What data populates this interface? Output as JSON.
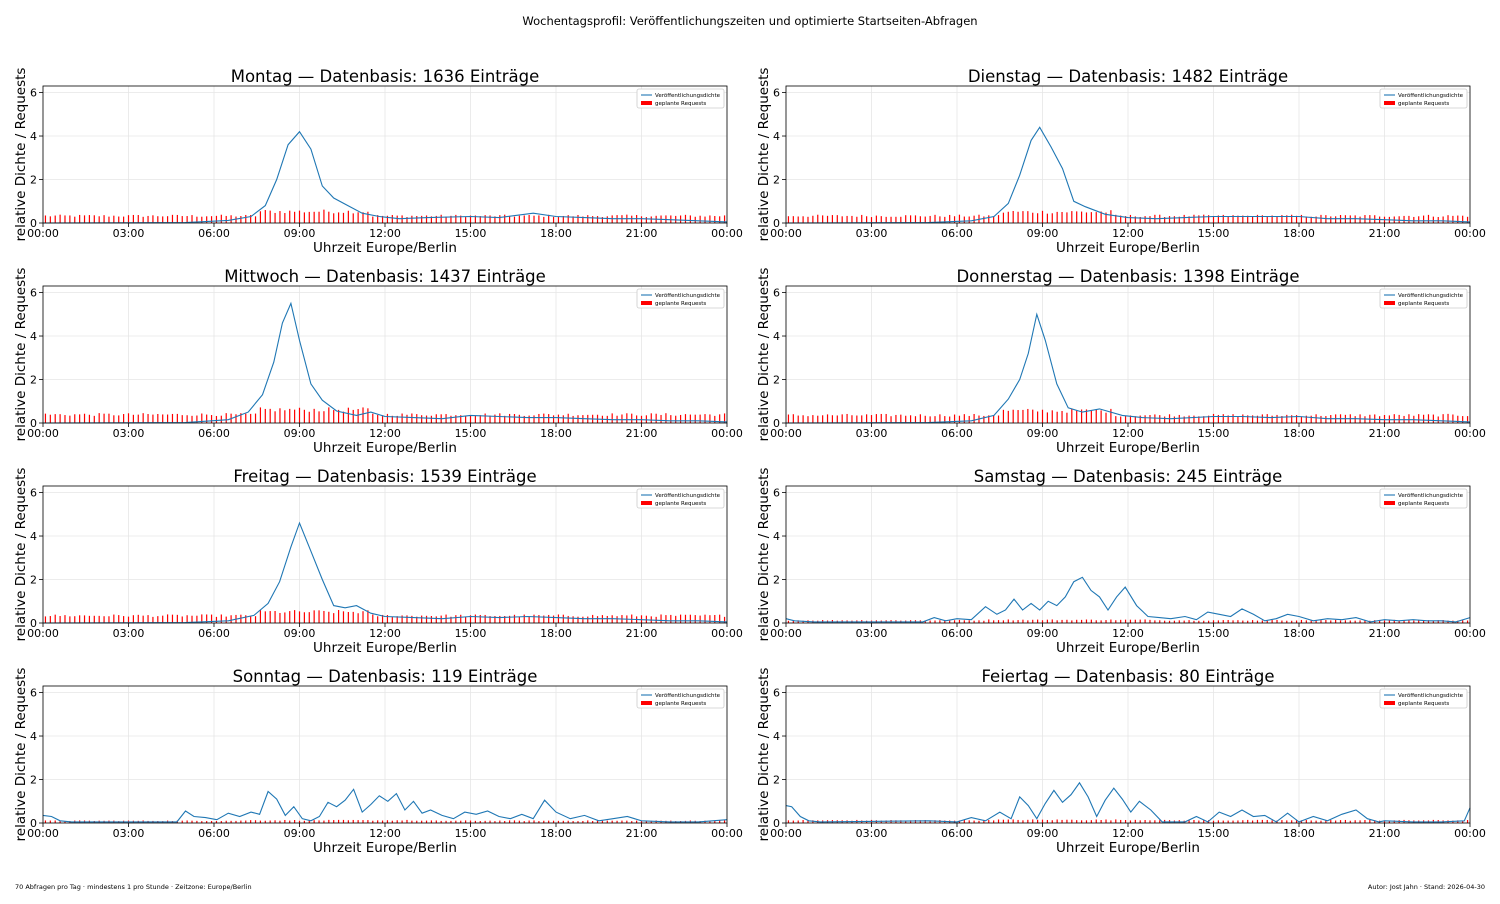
{
  "suptitle": "Wochentagsprofil: Veröffentlichungszeiten und optimierte Startseiten-Abfragen",
  "footer": {
    "left": "70 Abfragen pro Tag · mindestens 1 pro Stunde · Zeitzone: Europe/Berlin",
    "right": "Autor: Jost Jahn · Stand: 2026-04-30"
  },
  "colors": {
    "density": "#1f77b4",
    "requests": "#ff0000",
    "grid": "#e6e6e6"
  },
  "chart_data": [
    {
      "type": "line",
      "title": "Montag — Datenbasis: 1636 Einträge",
      "xlabel": "Uhrzeit Europe/Berlin",
      "ylabel": "relative Dichte / Requests",
      "xticks": [
        "00:00",
        "03:00",
        "06:00",
        "09:00",
        "12:00",
        "15:00",
        "18:00",
        "21:00",
        "00:00"
      ],
      "yticks": [
        "0",
        "2",
        "4",
        "6"
      ],
      "xlim": [
        0,
        24
      ],
      "ylim": [
        0,
        6.3
      ],
      "grid": true,
      "legend": "top-right",
      "series": [
        {
          "name": "Veröffentlichungsdichte",
          "type": "line",
          "x": [
            0,
            5,
            6.5,
            7.3,
            7.8,
            8.2,
            8.6,
            9.0,
            9.4,
            9.8,
            10.2,
            10.7,
            11.2,
            11.8,
            12.5,
            13.5,
            15,
            16,
            17.2,
            18,
            19,
            20,
            21,
            22,
            23,
            24
          ],
          "y": [
            0,
            0.02,
            0.12,
            0.3,
            0.8,
            2.0,
            3.6,
            4.2,
            3.4,
            1.7,
            1.15,
            0.8,
            0.45,
            0.3,
            0.2,
            0.25,
            0.3,
            0.25,
            0.45,
            0.3,
            0.25,
            0.2,
            0.2,
            0.15,
            0.1,
            0.05
          ]
        },
        {
          "name": "geplante Requests",
          "type": "bar",
          "value_off": 0.32,
          "value_peak": 0.52,
          "peak_range": [
            7.5,
            11.5
          ]
        }
      ]
    },
    {
      "type": "line",
      "title": "Dienstag — Datenbasis: 1482 Einträge",
      "xlabel": "Uhrzeit Europe/Berlin",
      "ylabel": "relative Dichte / Requests",
      "xticks": [
        "00:00",
        "03:00",
        "06:00",
        "09:00",
        "12:00",
        "15:00",
        "18:00",
        "21:00",
        "00:00"
      ],
      "yticks": [
        "0",
        "2",
        "4",
        "6"
      ],
      "xlim": [
        0,
        24
      ],
      "ylim": [
        0,
        6.3
      ],
      "grid": true,
      "legend": "top-right",
      "series": [
        {
          "name": "Veröffentlichungsdichte",
          "type": "line",
          "x": [
            0,
            5,
            6.5,
            7.3,
            7.8,
            8.2,
            8.6,
            8.9,
            9.3,
            9.7,
            10.1,
            10.5,
            11.2,
            12,
            13,
            14,
            15,
            16,
            17,
            18,
            19,
            20,
            21,
            22,
            23,
            24
          ],
          "y": [
            0,
            0.02,
            0.1,
            0.3,
            0.9,
            2.2,
            3.8,
            4.4,
            3.5,
            2.5,
            1.0,
            0.75,
            0.4,
            0.25,
            0.2,
            0.25,
            0.3,
            0.3,
            0.3,
            0.3,
            0.2,
            0.2,
            0.15,
            0.1,
            0.1,
            0.05
          ]
        },
        {
          "name": "geplante Requests",
          "type": "bar",
          "value_off": 0.32,
          "value_peak": 0.5,
          "peak_range": [
            7.5,
            11.5
          ]
        }
      ]
    },
    {
      "type": "line",
      "title": "Mittwoch — Datenbasis: 1437 Einträge",
      "xlabel": "Uhrzeit Europe/Berlin",
      "ylabel": "relative Dichte / Requests",
      "xticks": [
        "00:00",
        "03:00",
        "06:00",
        "09:00",
        "12:00",
        "15:00",
        "18:00",
        "21:00",
        "00:00"
      ],
      "yticks": [
        "0",
        "2",
        "4",
        "6"
      ],
      "xlim": [
        0,
        24
      ],
      "ylim": [
        0,
        6.3
      ],
      "grid": true,
      "legend": "top-right",
      "series": [
        {
          "name": "Veröffentlichungsdichte",
          "type": "line",
          "x": [
            0,
            5,
            6.5,
            7.2,
            7.7,
            8.1,
            8.4,
            8.7,
            9.0,
            9.4,
            9.8,
            10.3,
            11,
            11.5,
            12,
            13,
            14,
            15,
            16,
            17,
            18,
            19,
            20,
            21,
            22,
            23,
            24
          ],
          "y": [
            0,
            0.02,
            0.15,
            0.5,
            1.3,
            2.8,
            4.6,
            5.5,
            3.8,
            1.8,
            1.05,
            0.55,
            0.35,
            0.5,
            0.3,
            0.25,
            0.2,
            0.35,
            0.3,
            0.25,
            0.25,
            0.2,
            0.15,
            0.15,
            0.1,
            0.1,
            0.05
          ]
        },
        {
          "name": "geplante Requests",
          "type": "bar",
          "value_off": 0.38,
          "value_peak": 0.6,
          "peak_range": [
            7.5,
            11.5
          ]
        }
      ]
    },
    {
      "type": "line",
      "title": "Donnerstag — Datenbasis: 1398 Einträge",
      "xlabel": "Uhrzeit Europe/Berlin",
      "ylabel": "relative Dichte / Requests",
      "xticks": [
        "00:00",
        "03:00",
        "06:00",
        "09:00",
        "12:00",
        "15:00",
        "18:00",
        "21:00",
        "00:00"
      ],
      "yticks": [
        "0",
        "2",
        "4",
        "6"
      ],
      "xlim": [
        0,
        24
      ],
      "ylim": [
        0,
        6.3
      ],
      "grid": true,
      "legend": "top-right",
      "series": [
        {
          "name": "Veröffentlichungsdichte",
          "type": "line",
          "x": [
            0,
            5,
            6.5,
            7.3,
            7.8,
            8.2,
            8.5,
            8.8,
            9.1,
            9.5,
            9.9,
            10.4,
            11,
            11.8,
            12.5,
            13.5,
            15,
            16,
            17,
            18,
            19,
            20,
            21,
            22,
            23,
            24
          ],
          "y": [
            0,
            0.02,
            0.1,
            0.35,
            1.1,
            2.0,
            3.2,
            5.0,
            3.8,
            1.8,
            0.7,
            0.5,
            0.65,
            0.35,
            0.25,
            0.2,
            0.3,
            0.3,
            0.25,
            0.3,
            0.2,
            0.2,
            0.15,
            0.15,
            0.1,
            0.05
          ]
        },
        {
          "name": "geplante Requests",
          "type": "bar",
          "value_off": 0.35,
          "value_peak": 0.55,
          "peak_range": [
            7.5,
            11.5
          ]
        }
      ]
    },
    {
      "type": "line",
      "title": "Freitag — Datenbasis: 1539 Einträge",
      "xlabel": "Uhrzeit Europe/Berlin",
      "ylabel": "relative Dichte / Requests",
      "xticks": [
        "00:00",
        "03:00",
        "06:00",
        "09:00",
        "12:00",
        "15:00",
        "18:00",
        "21:00",
        "00:00"
      ],
      "yticks": [
        "0",
        "2",
        "4",
        "6"
      ],
      "xlim": [
        0,
        24
      ],
      "ylim": [
        0,
        6.3
      ],
      "grid": true,
      "legend": "top-right",
      "series": [
        {
          "name": "Veröffentlichungsdichte",
          "type": "line",
          "x": [
            0,
            5,
            6.5,
            7.4,
            7.9,
            8.3,
            8.7,
            9.0,
            9.4,
            9.8,
            10.2,
            10.6,
            11,
            11.5,
            12,
            13,
            14,
            15,
            16,
            17,
            18,
            19,
            20,
            21,
            22,
            23,
            24
          ],
          "y": [
            0,
            0.02,
            0.1,
            0.35,
            0.9,
            1.9,
            3.5,
            4.6,
            3.3,
            2.0,
            0.8,
            0.7,
            0.8,
            0.45,
            0.3,
            0.25,
            0.2,
            0.3,
            0.25,
            0.3,
            0.25,
            0.2,
            0.2,
            0.15,
            0.1,
            0.1,
            0.05
          ]
        },
        {
          "name": "geplante Requests",
          "type": "bar",
          "value_off": 0.33,
          "value_peak": 0.5,
          "peak_range": [
            7.5,
            11.5
          ]
        }
      ]
    },
    {
      "type": "line",
      "title": "Samstag — Datenbasis: 245 Einträge",
      "xlabel": "Uhrzeit Europe/Berlin",
      "ylabel": "relative Dichte / Requests",
      "xticks": [
        "00:00",
        "03:00",
        "06:00",
        "09:00",
        "12:00",
        "15:00",
        "18:00",
        "21:00",
        "00:00"
      ],
      "yticks": [
        "0",
        "2",
        "4",
        "6"
      ],
      "xlim": [
        0,
        24
      ],
      "ylim": [
        0,
        6.3
      ],
      "grid": true,
      "legend": "top-right",
      "series": [
        {
          "name": "Veröffentlichungsdichte",
          "type": "line",
          "x": [
            0,
            0.3,
            1,
            4.8,
            5.2,
            5.6,
            6,
            6.5,
            7,
            7.4,
            7.7,
            8,
            8.3,
            8.6,
            8.9,
            9.2,
            9.5,
            9.8,
            10.1,
            10.4,
            10.7,
            11,
            11.3,
            11.6,
            11.9,
            12.3,
            12.7,
            13.1,
            13.5,
            14,
            14.4,
            14.8,
            15.2,
            15.6,
            16,
            16.4,
            16.8,
            17.2,
            17.6,
            18,
            18.5,
            19,
            19.5,
            20,
            20.5,
            21,
            21.5,
            22,
            22.5,
            23,
            23.5,
            24
          ],
          "y": [
            0.2,
            0.1,
            0.05,
            0.05,
            0.25,
            0.1,
            0.2,
            0.15,
            0.75,
            0.4,
            0.6,
            1.1,
            0.6,
            0.9,
            0.6,
            1.0,
            0.8,
            1.2,
            1.9,
            2.1,
            1.5,
            1.2,
            0.6,
            1.2,
            1.65,
            0.8,
            0.3,
            0.25,
            0.2,
            0.3,
            0.15,
            0.5,
            0.4,
            0.3,
            0.65,
            0.4,
            0.1,
            0.2,
            0.4,
            0.3,
            0.1,
            0.2,
            0.15,
            0.25,
            0.05,
            0.15,
            0.1,
            0.15,
            0.1,
            0.1,
            0.05,
            0.25
          ]
        },
        {
          "name": "geplante Requests",
          "type": "bar",
          "value_off": 0.12,
          "value_peak": 0.14,
          "peak_range": [
            7,
            13
          ]
        }
      ]
    },
    {
      "type": "line",
      "title": "Sonntag — Datenbasis: 119 Einträge",
      "xlabel": "Uhrzeit Europe/Berlin",
      "ylabel": "relative Dichte / Requests",
      "xticks": [
        "00:00",
        "03:00",
        "06:00",
        "09:00",
        "12:00",
        "15:00",
        "18:00",
        "21:00",
        "00:00"
      ],
      "yticks": [
        "0",
        "2",
        "4",
        "6"
      ],
      "xlim": [
        0,
        24
      ],
      "ylim": [
        0,
        6.3
      ],
      "grid": true,
      "legend": "top-right",
      "series": [
        {
          "name": "Veröffentlichungsdichte",
          "type": "line",
          "x": [
            0,
            0.3,
            0.6,
            1,
            4.7,
            5.0,
            5.3,
            5.7,
            6.1,
            6.5,
            6.9,
            7.3,
            7.6,
            7.9,
            8.2,
            8.5,
            8.8,
            9.1,
            9.4,
            9.7,
            10.0,
            10.3,
            10.6,
            10.9,
            11.2,
            11.5,
            11.8,
            12.1,
            12.4,
            12.7,
            13.0,
            13.3,
            13.6,
            14.0,
            14.4,
            14.8,
            15.2,
            15.6,
            16,
            16.4,
            16.8,
            17.2,
            17.6,
            18,
            18.5,
            19,
            19.5,
            20,
            20.5,
            21,
            22,
            23,
            24
          ],
          "y": [
            0.35,
            0.3,
            0.1,
            0.05,
            0.05,
            0.55,
            0.3,
            0.25,
            0.15,
            0.45,
            0.3,
            0.5,
            0.4,
            1.45,
            1.1,
            0.35,
            0.75,
            0.2,
            0.1,
            0.3,
            0.95,
            0.75,
            1.05,
            1.55,
            0.5,
            0.85,
            1.25,
            1.0,
            1.35,
            0.6,
            1.0,
            0.45,
            0.6,
            0.35,
            0.2,
            0.5,
            0.4,
            0.55,
            0.3,
            0.2,
            0.4,
            0.2,
            1.05,
            0.5,
            0.2,
            0.35,
            0.1,
            0.2,
            0.3,
            0.1,
            0.05,
            0.05,
            0.15
          ]
        },
        {
          "name": "geplante Requests",
          "type": "bar",
          "value_off": 0.1,
          "value_peak": 0.12,
          "peak_range": [
            7,
            13
          ]
        }
      ]
    },
    {
      "type": "line",
      "title": "Feiertag — Datenbasis: 80 Einträge",
      "xlabel": "Uhrzeit Europe/Berlin",
      "ylabel": "relative Dichte / Requests",
      "xticks": [
        "00:00",
        "03:00",
        "06:00",
        "09:00",
        "12:00",
        "15:00",
        "18:00",
        "21:00",
        "00:00"
      ],
      "yticks": [
        "0",
        "2",
        "4",
        "6"
      ],
      "xlim": [
        0,
        24
      ],
      "ylim": [
        0,
        6.3
      ],
      "grid": true,
      "legend": "top-right",
      "series": [
        {
          "name": "Veröffentlichungsdichte",
          "type": "line",
          "x": [
            0,
            0.2,
            0.5,
            0.8,
            1.2,
            5,
            6,
            6.5,
            7,
            7.5,
            7.9,
            8.2,
            8.5,
            8.8,
            9.1,
            9.4,
            9.7,
            10.0,
            10.3,
            10.6,
            10.9,
            11.2,
            11.5,
            11.8,
            12.1,
            12.4,
            12.8,
            13.2,
            14,
            14.4,
            14.8,
            15.2,
            15.6,
            16,
            16.4,
            16.8,
            17.2,
            17.6,
            18,
            18.5,
            19,
            19.5,
            20,
            20.4,
            20.8,
            21,
            22,
            23,
            23.8,
            24
          ],
          "y": [
            0.8,
            0.75,
            0.3,
            0.1,
            0.05,
            0.1,
            0.05,
            0.25,
            0.1,
            0.5,
            0.2,
            1.2,
            0.8,
            0.2,
            0.9,
            1.5,
            0.95,
            1.3,
            1.85,
            1.2,
            0.3,
            1.05,
            1.6,
            1.1,
            0.5,
            1.0,
            0.6,
            0.05,
            0.05,
            0.3,
            0.05,
            0.5,
            0.3,
            0.6,
            0.3,
            0.35,
            0.05,
            0.45,
            0.05,
            0.3,
            0.1,
            0.4,
            0.6,
            0.2,
            0.05,
            0.1,
            0.05,
            0.05,
            0.1,
            0.7
          ]
        },
        {
          "name": "geplante Requests",
          "type": "bar",
          "value_off": 0.12,
          "value_peak": 0.14,
          "peak_range": [
            7,
            13
          ]
        }
      ]
    }
  ]
}
